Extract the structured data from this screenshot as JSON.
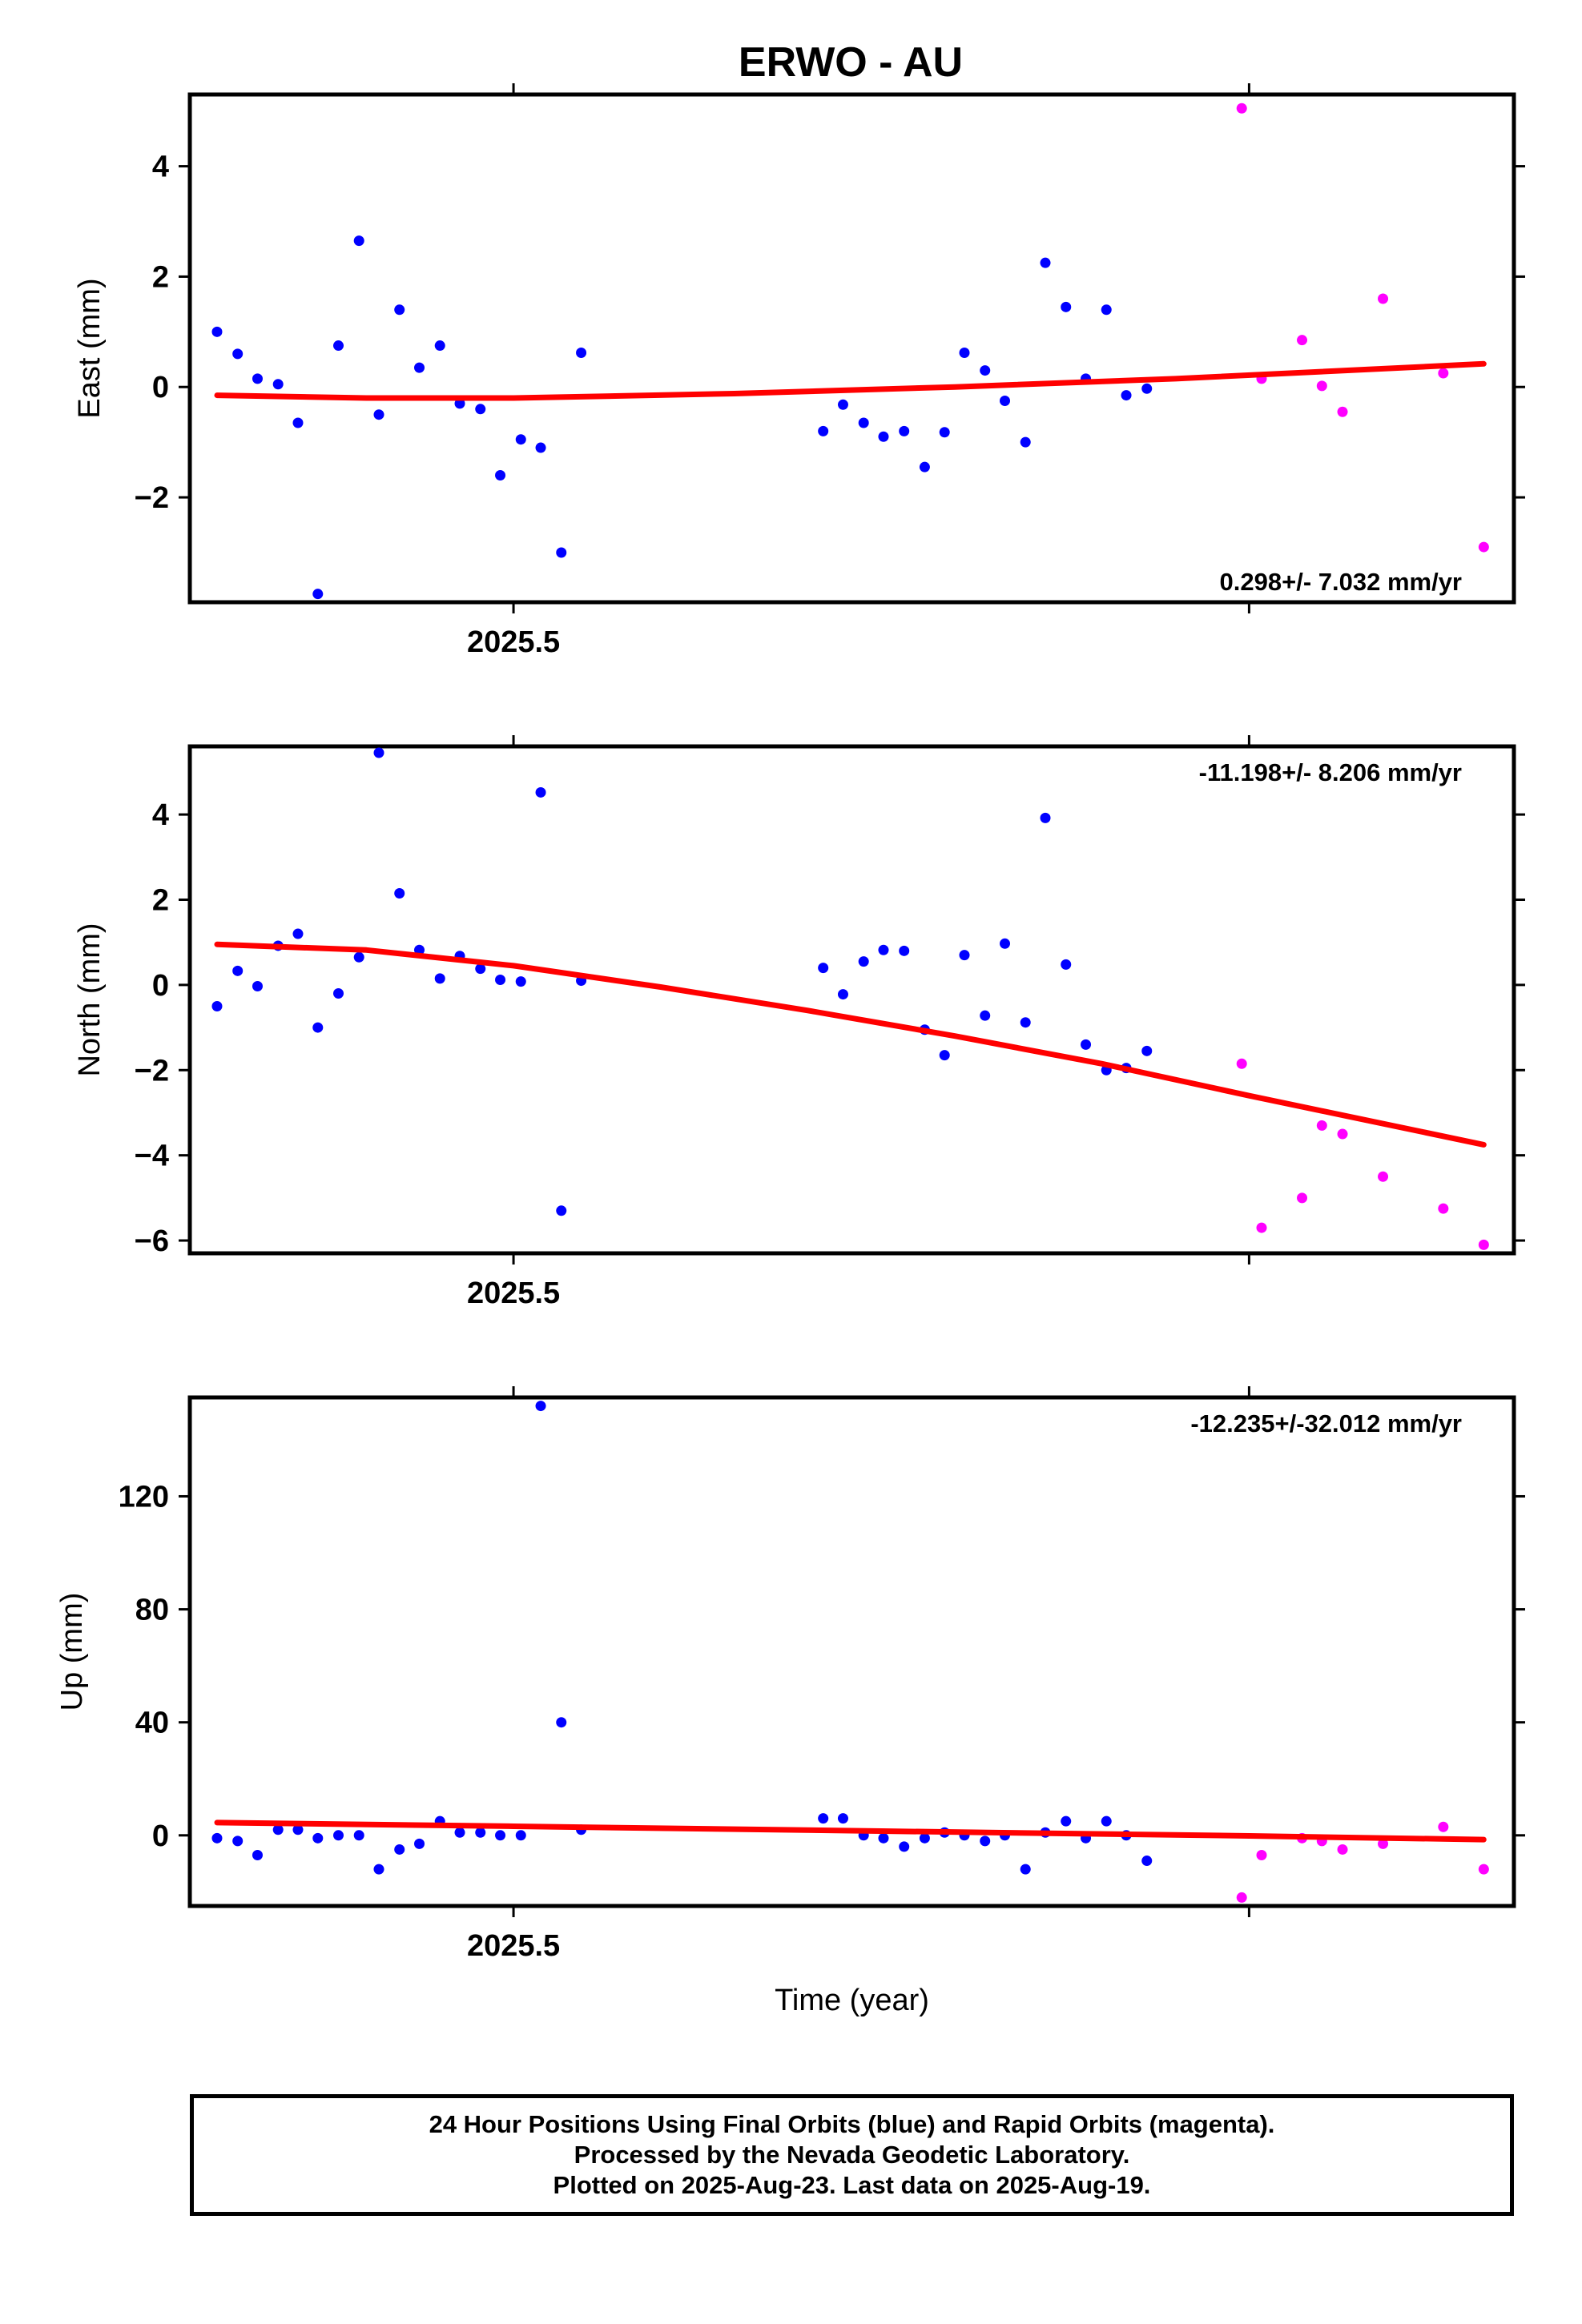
{
  "page": {
    "title": "ERWO - AU"
  },
  "footer": {
    "line1": "24 Hour Positions Using Final Orbits (blue) and Rapid Orbits (magenta).",
    "line2": "Processed by the Nevada Geodetic Laboratory.",
    "line3": "Plotted on 2025-Aug-23. Last data on 2025-Aug-19."
  },
  "colors": {
    "final": "#0000ff",
    "rapid": "#ff00ff",
    "fit": "#ff0000"
  },
  "chart_data": [
    {
      "type": "scatter",
      "ylabel": "East (mm)",
      "xlabel": "",
      "rate_label": "0.298+/- 7.032 mm/yr",
      "rate_position": "bottom-right",
      "x_tick_labels": [
        "2025.5"
      ],
      "x_ticks": [
        2025.5,
        2025.6
      ],
      "xlim": [
        2025.456,
        2025.636
      ],
      "ylim": [
        -3.9,
        5.3
      ],
      "yticks": [
        -2,
        0,
        2,
        4
      ],
      "ytick_labels": [
        "−2",
        "0",
        "2",
        "4"
      ],
      "grid": false,
      "series": [
        {
          "kind": "final",
          "points": [
            [
              2025.4597,
              1.0
            ],
            [
              2025.4625,
              0.6
            ],
            [
              2025.4652,
              0.15
            ],
            [
              2025.468,
              0.05
            ],
            [
              2025.4707,
              -0.65
            ],
            [
              2025.4734,
              -3.75
            ],
            [
              2025.4762,
              0.75
            ],
            [
              2025.479,
              2.65
            ],
            [
              2025.4817,
              -0.5
            ],
            [
              2025.4845,
              1.4
            ],
            [
              2025.4872,
              0.35
            ],
            [
              2025.49,
              0.75
            ],
            [
              2025.4927,
              -0.3
            ],
            [
              2025.4955,
              -0.4
            ],
            [
              2025.4982,
              -1.6
            ],
            [
              2025.501,
              -0.95
            ],
            [
              2025.5037,
              -1.1
            ],
            [
              2025.5065,
              -3.0
            ],
            [
              2025.5092,
              0.62
            ],
            [
              2025.5421,
              -0.8
            ],
            [
              2025.5448,
              -0.32
            ],
            [
              2025.5476,
              -0.65
            ],
            [
              2025.5503,
              -0.9
            ],
            [
              2025.5531,
              -0.8
            ],
            [
              2025.5559,
              -1.45
            ],
            [
              2025.5586,
              -0.82
            ],
            [
              2025.5613,
              0.62
            ],
            [
              2025.5641,
              0.3
            ],
            [
              2025.5668,
              -0.25
            ],
            [
              2025.5696,
              -1.0
            ],
            [
              2025.5723,
              2.25
            ],
            [
              2025.5751,
              1.45
            ],
            [
              2025.5778,
              0.15
            ],
            [
              2025.5806,
              1.4
            ],
            [
              2025.5833,
              -0.15
            ],
            [
              2025.5861,
              -0.03
            ]
          ]
        },
        {
          "kind": "rapid",
          "points": [
            [
              2025.599,
              5.05
            ],
            [
              2025.6017,
              0.15
            ],
            [
              2025.6072,
              0.85
            ],
            [
              2025.6099,
              0.02
            ],
            [
              2025.6127,
              -0.45
            ],
            [
              2025.6182,
              1.6
            ],
            [
              2025.6264,
              0.25
            ],
            [
              2025.6319,
              -2.9
            ]
          ]
        }
      ],
      "fit": [
        [
          2025.4597,
          -0.15
        ],
        [
          2025.48,
          -0.2
        ],
        [
          2025.5,
          -0.2
        ],
        [
          2025.53,
          -0.12
        ],
        [
          2025.56,
          0.0
        ],
        [
          2025.59,
          0.15
        ],
        [
          2025.6319,
          0.42
        ]
      ]
    },
    {
      "type": "scatter",
      "ylabel": "North (mm)",
      "xlabel": "",
      "rate_label": "-11.198+/- 8.206 mm/yr",
      "rate_position": "top-right",
      "x_tick_labels": [
        "2025.5"
      ],
      "x_ticks": [
        2025.5,
        2025.6
      ],
      "xlim": [
        2025.456,
        2025.636
      ],
      "ylim": [
        -6.3,
        5.6
      ],
      "yticks": [
        -6,
        -4,
        -2,
        0,
        2,
        4
      ],
      "ytick_labels": [
        "−6",
        "−4",
        "−2",
        "0",
        "2",
        "4"
      ],
      "grid": false,
      "series": [
        {
          "kind": "final",
          "points": [
            [
              2025.4597,
              -0.5
            ],
            [
              2025.4625,
              0.33
            ],
            [
              2025.4652,
              -0.03
            ],
            [
              2025.468,
              0.92
            ],
            [
              2025.4707,
              1.2
            ],
            [
              2025.4734,
              -1.0
            ],
            [
              2025.4762,
              -0.2
            ],
            [
              2025.479,
              0.65
            ],
            [
              2025.4817,
              5.45
            ],
            [
              2025.4845,
              2.15
            ],
            [
              2025.4872,
              0.82
            ],
            [
              2025.49,
              0.15
            ],
            [
              2025.4927,
              0.68
            ],
            [
              2025.4955,
              0.38
            ],
            [
              2025.4982,
              0.12
            ],
            [
              2025.501,
              0.08
            ],
            [
              2025.5037,
              4.52
            ],
            [
              2025.5065,
              -5.3
            ],
            [
              2025.5092,
              0.1
            ],
            [
              2025.5421,
              0.4
            ],
            [
              2025.5448,
              -0.22
            ],
            [
              2025.5476,
              0.55
            ],
            [
              2025.5503,
              0.82
            ],
            [
              2025.5531,
              0.8
            ],
            [
              2025.5559,
              -1.05
            ],
            [
              2025.5586,
              -1.65
            ],
            [
              2025.5613,
              0.7
            ],
            [
              2025.5641,
              -0.72
            ],
            [
              2025.5668,
              0.97
            ],
            [
              2025.5696,
              -0.88
            ],
            [
              2025.5723,
              3.92
            ],
            [
              2025.5751,
              0.48
            ],
            [
              2025.5778,
              -1.4
            ],
            [
              2025.5806,
              -2.0
            ],
            [
              2025.5833,
              -1.95
            ],
            [
              2025.5861,
              -1.55
            ]
          ]
        },
        {
          "kind": "rapid",
          "points": [
            [
              2025.599,
              -1.85
            ],
            [
              2025.6017,
              -5.7
            ],
            [
              2025.6072,
              -5.0
            ],
            [
              2025.6099,
              -3.3
            ],
            [
              2025.6127,
              -3.5
            ],
            [
              2025.6182,
              -4.5
            ],
            [
              2025.6264,
              -5.25
            ],
            [
              2025.6319,
              -6.1
            ]
          ]
        }
      ],
      "fit": [
        [
          2025.4597,
          0.95
        ],
        [
          2025.48,
          0.82
        ],
        [
          2025.5,
          0.45
        ],
        [
          2025.52,
          -0.05
        ],
        [
          2025.54,
          -0.6
        ],
        [
          2025.56,
          -1.2
        ],
        [
          2025.58,
          -1.85
        ],
        [
          2025.6,
          -2.6
        ],
        [
          2025.6319,
          -3.75
        ]
      ]
    },
    {
      "type": "scatter",
      "ylabel": "Up (mm)",
      "xlabel": "Time (year)",
      "rate_label": "-12.235+/-32.012 mm/yr",
      "rate_position": "top-right",
      "x_tick_labels": [
        "2025.5"
      ],
      "x_ticks": [
        2025.5,
        2025.6
      ],
      "xlim": [
        2025.456,
        2025.636
      ],
      "ylim": [
        -25,
        155
      ],
      "yticks": [
        0,
        40,
        80,
        120
      ],
      "ytick_labels": [
        "0",
        "40",
        "80",
        "120"
      ],
      "grid": false,
      "series": [
        {
          "kind": "final",
          "points": [
            [
              2025.4597,
              -1
            ],
            [
              2025.4625,
              -2
            ],
            [
              2025.4652,
              -7
            ],
            [
              2025.468,
              2
            ],
            [
              2025.4707,
              2
            ],
            [
              2025.4734,
              -1
            ],
            [
              2025.4762,
              0
            ],
            [
              2025.479,
              0
            ],
            [
              2025.4817,
              -12
            ],
            [
              2025.4845,
              -5
            ],
            [
              2025.4872,
              -3
            ],
            [
              2025.49,
              5
            ],
            [
              2025.4927,
              1
            ],
            [
              2025.4955,
              1
            ],
            [
              2025.4982,
              0
            ],
            [
              2025.501,
              0
            ],
            [
              2025.5037,
              152
            ],
            [
              2025.5065,
              40
            ],
            [
              2025.5092,
              2
            ],
            [
              2025.5421,
              6
            ],
            [
              2025.5448,
              6
            ],
            [
              2025.5476,
              0
            ],
            [
              2025.5503,
              -1
            ],
            [
              2025.5531,
              -4
            ],
            [
              2025.5559,
              -1
            ],
            [
              2025.5586,
              1
            ],
            [
              2025.5613,
              0
            ],
            [
              2025.5641,
              -2
            ],
            [
              2025.5668,
              0
            ],
            [
              2025.5696,
              -12
            ],
            [
              2025.5723,
              1
            ],
            [
              2025.5751,
              5
            ],
            [
              2025.5778,
              -1
            ],
            [
              2025.5806,
              5
            ],
            [
              2025.5833,
              0
            ],
            [
              2025.5861,
              -9
            ]
          ]
        },
        {
          "kind": "rapid",
          "points": [
            [
              2025.599,
              -22
            ],
            [
              2025.6017,
              -7
            ],
            [
              2025.6072,
              -1
            ],
            [
              2025.6099,
              -2
            ],
            [
              2025.6127,
              -5
            ],
            [
              2025.6182,
              -3
            ],
            [
              2025.6264,
              3
            ],
            [
              2025.6319,
              -12
            ]
          ]
        }
      ],
      "fit": [
        [
          2025.4597,
          4.5
        ],
        [
          2025.5,
          3.2
        ],
        [
          2025.55,
          1.5
        ],
        [
          2025.6,
          -0.2
        ],
        [
          2025.6319,
          -1.5
        ]
      ]
    }
  ]
}
